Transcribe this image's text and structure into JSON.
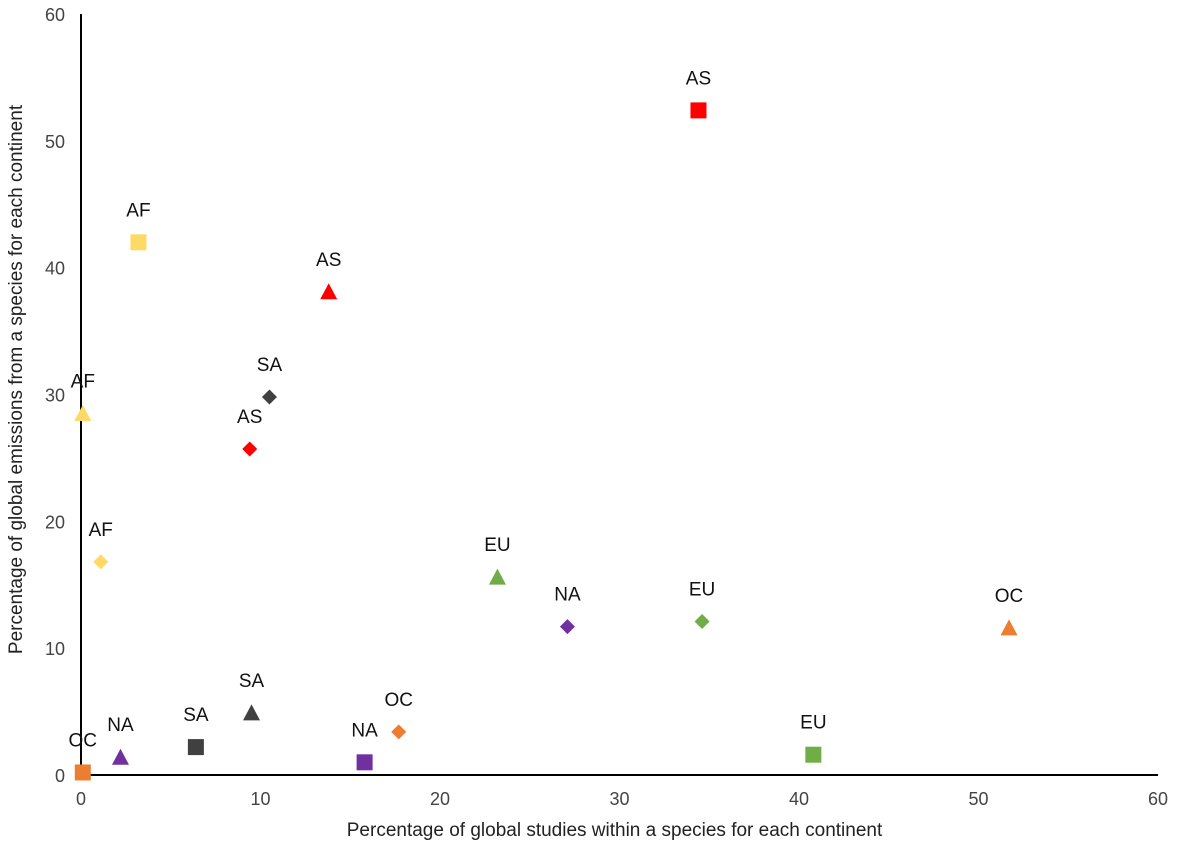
{
  "chart_data": {
    "type": "scatter",
    "xlabel": "Percentage of global studies within a species for each continent",
    "ylabel": "Percentage of global emissions from a species for each continent",
    "xlim": [
      0,
      60
    ],
    "ylim": [
      0,
      60
    ],
    "xticks": [
      "0",
      "10",
      "20",
      "30",
      "40",
      "50",
      "60"
    ],
    "yticks": [
      "0",
      "10",
      "20",
      "30",
      "40",
      "50",
      "60"
    ],
    "grid": false,
    "legend": "none",
    "colors": {
      "AF": "#FFD966",
      "AS": "#FF0000",
      "SA": "#404040",
      "EU": "#70AD47",
      "NA": "#7030A0",
      "OC": "#ED7D31"
    },
    "points": [
      {
        "label": "AS",
        "group": "AS",
        "marker": "square",
        "x": 34.4,
        "y": 52.4
      },
      {
        "label": "AF",
        "group": "AF",
        "marker": "square",
        "x": 3.2,
        "y": 42.0
      },
      {
        "label": "AS",
        "group": "AS",
        "marker": "triangle",
        "x": 13.8,
        "y": 38.1
      },
      {
        "label": "SA",
        "group": "SA",
        "marker": "diamond",
        "x": 10.5,
        "y": 29.8
      },
      {
        "label": "AF",
        "group": "AF",
        "marker": "triangle",
        "x": 0.1,
        "y": 28.5
      },
      {
        "label": "AS",
        "group": "AS",
        "marker": "diamond",
        "x": 9.4,
        "y": 25.7
      },
      {
        "label": "AF",
        "group": "AF",
        "marker": "diamond",
        "x": 1.1,
        "y": 16.8
      },
      {
        "label": "EU",
        "group": "EU",
        "marker": "triangle",
        "x": 23.2,
        "y": 15.6
      },
      {
        "label": "NA",
        "group": "NA",
        "marker": "diamond",
        "x": 27.1,
        "y": 11.7
      },
      {
        "label": "EU",
        "group": "EU",
        "marker": "diamond",
        "x": 34.6,
        "y": 12.1
      },
      {
        "label": "OC",
        "group": "OC",
        "marker": "triangle",
        "x": 51.7,
        "y": 11.6
      },
      {
        "label": "SA",
        "group": "SA",
        "marker": "triangle",
        "x": 9.5,
        "y": 4.9
      },
      {
        "label": "OC",
        "group": "OC",
        "marker": "diamond",
        "x": 17.7,
        "y": 3.4
      },
      {
        "label": "SA",
        "group": "SA",
        "marker": "square",
        "x": 6.4,
        "y": 2.2
      },
      {
        "label": "NA",
        "group": "NA",
        "marker": "triangle",
        "x": 2.2,
        "y": 1.4
      },
      {
        "label": "NA",
        "group": "NA",
        "marker": "square",
        "x": 15.8,
        "y": 1.0
      },
      {
        "label": "EU",
        "group": "EU",
        "marker": "square",
        "x": 40.8,
        "y": 1.6
      },
      {
        "label": "OC",
        "group": "OC",
        "marker": "square",
        "x": 0.1,
        "y": 0.2
      }
    ]
  }
}
